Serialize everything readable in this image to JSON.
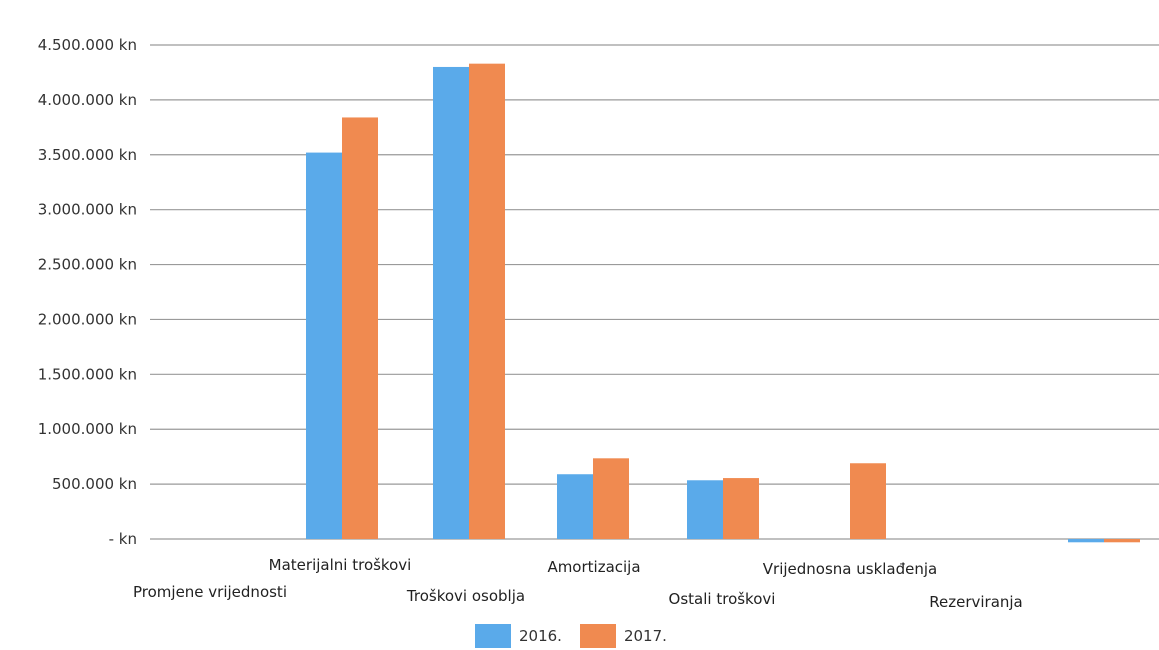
{
  "chart_data": {
    "type": "bar",
    "title": "",
    "xlabel": "",
    "ylabel": "",
    "ylim": [
      -20000,
      4500000
    ],
    "yticks": [
      {
        "value": 4500000,
        "label": "4.500.000 kn"
      },
      {
        "value": 4000000,
        "label": "4.000.000 kn"
      },
      {
        "value": 3500000,
        "label": "3.500.000 kn"
      },
      {
        "value": 3000000,
        "label": "3.000.000 kn"
      },
      {
        "value": 2500000,
        "label": "2.500.000 kn"
      },
      {
        "value": 2000000,
        "label": "2.000.000 kn"
      },
      {
        "value": 1500000,
        "label": "1.500.000 kn"
      },
      {
        "value": 1000000,
        "label": "1.000.000 kn"
      },
      {
        "value": 500000,
        "label": "500.000 kn"
      },
      {
        "value": 0,
        "label": "- kn"
      }
    ],
    "categories": [
      "Promjene vrijednosti",
      "Materijalni troškovi",
      "Troškovi osoblja",
      "Amortizacija",
      "Ostali troškovi",
      "Vrijednosna usklađenja",
      "Rezerviranja",
      ""
    ],
    "series": [
      {
        "name": "2016.",
        "color": "#5aaaea",
        "values": [
          0,
          3520000,
          4300000,
          590000,
          535000,
          0,
          0,
          -30000
        ]
      },
      {
        "name": "2017.",
        "color": "#f08a50",
        "values": [
          0,
          3840000,
          4330000,
          735000,
          555000,
          690000,
          0,
          -30000
        ]
      }
    ],
    "grid": true,
    "legend_position": "bottom"
  }
}
